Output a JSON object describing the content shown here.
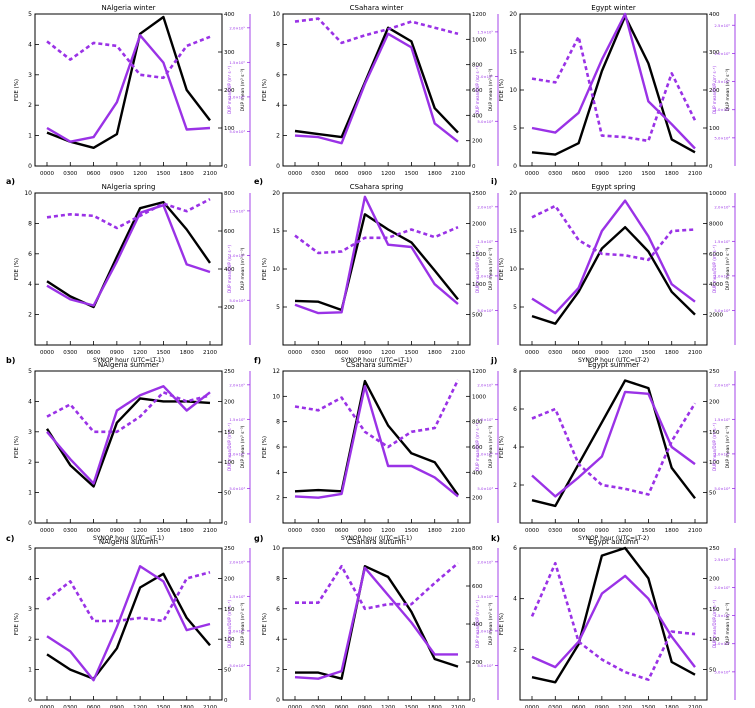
{
  "figure": {
    "x_ticks": [
      "0000",
      "0300",
      "0600",
      "0900",
      "1200",
      "1500",
      "1800",
      "2100"
    ],
    "colors": {
      "fde": "#000000",
      "dup": "#9a32e6"
    }
  },
  "chart_data": [
    {
      "type": "line",
      "title": "NAlgeria winter",
      "letter": "a)",
      "xlabel": "",
      "ylabel": "FDE (%)",
      "y2label": "DUP mean (m³ s⁻³)",
      "y3label": "DUP mean/DUP (m³ s⁻³)",
      "ylim": [
        0,
        5
      ],
      "yticks": [
        0,
        1,
        2,
        3,
        4,
        5
      ],
      "y2lim": [
        0,
        400
      ],
      "y2ticks": [
        0,
        100,
        200,
        300,
        400
      ],
      "y3ticks": [
        "5.0×10⁴",
        "1.0×10⁵",
        "1.5×10⁵",
        "2.0×10⁵"
      ],
      "series": [
        {
          "values": [
            1.1,
            0.8,
            0.6,
            1.05,
            4.35,
            4.9,
            2.5,
            1.5
          ],
          "color": "#000000",
          "dash": false
        },
        {
          "values": [
            1.25,
            0.8,
            0.95,
            2.1,
            4.3,
            3.4,
            1.2,
            1.25
          ],
          "color": "#9a32e6",
          "dash": false
        },
        {
          "values": [
            4.1,
            3.5,
            4.05,
            3.95,
            3.0,
            2.9,
            3.95,
            4.25
          ],
          "color": "#9a32e6",
          "dash": true
        }
      ]
    },
    {
      "type": "line",
      "title": "CSahara winter",
      "letter": "e)",
      "xlabel": "",
      "ylabel": "FDE (%)",
      "y2label": "DUP mean (m³ s⁻³)",
      "y3label": "DUP mean/DUP (m³ s⁻³)",
      "ylim": [
        0,
        10
      ],
      "yticks": [
        0,
        2,
        4,
        6,
        8,
        10
      ],
      "y2lim": [
        0,
        1200
      ],
      "y2ticks": [
        0,
        200,
        400,
        600,
        800,
        1000,
        1200
      ],
      "y3ticks": [
        "5.0×10⁴",
        "1.0×10⁵",
        "1.5×10⁵"
      ],
      "series": [
        {
          "values": [
            2.3,
            2.1,
            1.9,
            5.5,
            9.1,
            8.2,
            3.8,
            2.2
          ],
          "color": "#000000",
          "dash": false
        },
        {
          "values": [
            2.0,
            1.9,
            1.5,
            5.4,
            8.7,
            7.8,
            2.8,
            1.6
          ],
          "color": "#9a32e6",
          "dash": false
        },
        {
          "values": [
            9.5,
            9.7,
            8.1,
            8.6,
            9.0,
            9.5,
            9.1,
            8.7
          ],
          "color": "#9a32e6",
          "dash": true
        }
      ]
    },
    {
      "type": "line",
      "title": "Egypt winter",
      "letter": "i)",
      "xlabel": "",
      "ylabel": "FDE (%)",
      "y2label": "DUP mean (m³ s⁻³)",
      "y3label": "DUP mean/DUP (m³ s⁻³)",
      "ylim": [
        0,
        20
      ],
      "yticks": [
        0,
        5,
        10,
        15,
        20
      ],
      "y2lim": [
        0,
        400
      ],
      "y2ticks": [
        0,
        100,
        200,
        300,
        400
      ],
      "y3ticks": [
        "5.0×10⁴",
        "1.0×10⁵",
        "1.5×10⁵",
        "2.0×10⁵",
        "2.5×10⁵"
      ],
      "series": [
        {
          "values": [
            1.8,
            1.5,
            3.0,
            12.5,
            19.7,
            13.5,
            3.5,
            1.8
          ],
          "color": "#000000",
          "dash": false
        },
        {
          "values": [
            5.0,
            4.4,
            7.0,
            14.0,
            20.0,
            8.5,
            5.5,
            2.3
          ],
          "color": "#9a32e6",
          "dash": false
        },
        {
          "values": [
            11.5,
            11.0,
            17.0,
            4.0,
            3.8,
            3.3,
            12.2,
            6.0
          ],
          "color": "#9a32e6",
          "dash": true
        }
      ]
    },
    {
      "type": "line",
      "title": "NAlgeria spring",
      "letter": "b)",
      "xlabel": "SYNOP hour (UTC=LT-1)",
      "ylabel": "FDE (%)",
      "y2label": "DUP mean (m³ s⁻³)",
      "y3label": "DUP mean/DUP (m³ s⁻³)",
      "ylim": [
        0,
        10
      ],
      "yticks": [
        2,
        4,
        6,
        8,
        10
      ],
      "y2lim": [
        0,
        800
      ],
      "y2ticks": [
        200,
        400,
        600,
        800
      ],
      "y3ticks": [
        "5.0×10⁴",
        "1.0×10⁵",
        "1.5×10⁵"
      ],
      "series": [
        {
          "values": [
            4.2,
            3.2,
            2.5,
            5.8,
            9.0,
            9.4,
            7.6,
            5.4
          ],
          "color": "#000000",
          "dash": false
        },
        {
          "values": [
            3.9,
            3.0,
            2.6,
            5.5,
            8.7,
            9.2,
            5.3,
            4.8
          ],
          "color": "#9a32e6",
          "dash": false
        },
        {
          "values": [
            8.4,
            8.6,
            8.5,
            7.7,
            8.5,
            9.3,
            8.8,
            9.6
          ],
          "color": "#9a32e6",
          "dash": true
        }
      ]
    },
    {
      "type": "line",
      "title": "CSahara spring",
      "letter": "f)",
      "xlabel": "SYNOP hour (UTC=LT-1)",
      "ylabel": "FDE (%)",
      "y2label": "DUP mean (m³ s⁻³)",
      "y3label": "DUP mean/DUP (m³ s⁻³)",
      "ylim": [
        0,
        20
      ],
      "yticks": [
        5,
        10,
        15,
        20
      ],
      "y2lim": [
        0,
        2500
      ],
      "y2ticks": [
        500,
        1000,
        1500,
        2000,
        2500
      ],
      "y3ticks": [
        "5.0×10⁴",
        "1.0×10⁵",
        "1.5×10⁵",
        "2.0×10⁵"
      ],
      "series": [
        {
          "values": [
            5.8,
            5.7,
            4.6,
            17.2,
            15.2,
            13.5,
            9.8,
            6.0
          ],
          "color": "#000000",
          "dash": false
        },
        {
          "values": [
            5.3,
            4.2,
            4.3,
            19.5,
            13.2,
            12.9,
            8.0,
            5.4
          ],
          "color": "#9a32e6",
          "dash": false
        },
        {
          "values": [
            14.4,
            12.1,
            12.3,
            14.1,
            14.1,
            15.2,
            14.2,
            15.5
          ],
          "color": "#9a32e6",
          "dash": true
        }
      ]
    },
    {
      "type": "line",
      "title": "Egypt spring",
      "letter": "j)",
      "xlabel": "SYNOP hour (UTC=LT-2)",
      "ylabel": "FDE (%)",
      "y2label": "DUP mean (m³ s⁻³)",
      "y3label": "DUP mean/DUP (m³ s⁻³)",
      "ylim": [
        0,
        20
      ],
      "yticks": [
        5,
        10,
        15,
        20
      ],
      "y2lim": [
        0,
        10000
      ],
      "y2ticks": [
        2000,
        4000,
        6000,
        8000,
        10000
      ],
      "y3ticks": [
        "5.0×10⁴",
        "1.0×10⁵",
        "1.5×10⁵",
        "2.0×10⁵"
      ],
      "series": [
        {
          "values": [
            3.8,
            2.8,
            7.0,
            12.7,
            15.5,
            12.3,
            7.0,
            4.0
          ],
          "color": "#000000",
          "dash": false
        },
        {
          "values": [
            6.1,
            4.2,
            7.5,
            15.0,
            19.0,
            14.3,
            8.0,
            5.7
          ],
          "color": "#9a32e6",
          "dash": false
        },
        {
          "values": [
            16.8,
            18.3,
            13.8,
            12.0,
            11.8,
            11.2,
            15.0,
            15.2
          ],
          "color": "#9a32e6",
          "dash": true
        }
      ]
    },
    {
      "type": "line",
      "title": "NAlgeria summer",
      "letter": "c)",
      "xlabel": "SYNOP hour (UTC=LT-1)",
      "ylabel": "FDE (%)",
      "y2label": "DUP mean (m³ s⁻³)",
      "y3label": "DUP mean/DUP (m³ s⁻³)",
      "ylim": [
        0,
        5
      ],
      "yticks": [
        0,
        1,
        2,
        3,
        4,
        5
      ],
      "y2lim": [
        0,
        250
      ],
      "y2ticks": [
        0,
        50,
        100,
        150,
        200,
        250
      ],
      "y3ticks": [
        "5.0×10⁴",
        "1.0×10⁵",
        "1.5×10⁵",
        "2.0×10⁵"
      ],
      "series": [
        {
          "values": [
            3.1,
            1.9,
            1.2,
            3.3,
            4.1,
            4.0,
            4.0,
            3.95
          ],
          "color": "#000000",
          "dash": false
        },
        {
          "values": [
            3.0,
            2.1,
            1.3,
            3.7,
            4.2,
            4.5,
            3.7,
            4.3
          ],
          "color": "#9a32e6",
          "dash": false
        },
        {
          "values": [
            3.5,
            3.9,
            3.0,
            3.0,
            3.5,
            4.3,
            4.0,
            4.2
          ],
          "color": "#9a32e6",
          "dash": true
        }
      ]
    },
    {
      "type": "line",
      "title": "CSahara summer",
      "letter": "g)",
      "xlabel": "SYNOP hour (UTC=LT-1)",
      "ylabel": "FDE (%)",
      "y2label": "DUP mean (m³ s⁻³)",
      "y3label": "DUP mean/DUP (m³ s⁻³)",
      "ylim": [
        0,
        12
      ],
      "yticks": [
        2,
        4,
        6,
        8,
        10,
        12
      ],
      "y2lim": [
        0,
        1200
      ],
      "y2ticks": [
        200,
        400,
        600,
        800,
        1000,
        1200
      ],
      "y3ticks": [
        "5.0×10⁴",
        "1.0×10⁵",
        "1.5×10⁵",
        "2.0×10⁵"
      ],
      "series": [
        {
          "values": [
            2.5,
            2.6,
            2.5,
            11.2,
            7.7,
            5.5,
            4.8,
            2.2
          ],
          "color": "#000000",
          "dash": false
        },
        {
          "values": [
            2.1,
            2.0,
            2.3,
            10.8,
            4.5,
            4.5,
            3.6,
            2.1
          ],
          "color": "#9a32e6",
          "dash": false
        },
        {
          "values": [
            9.2,
            8.9,
            9.9,
            7.2,
            6.0,
            7.2,
            7.5,
            11.3
          ],
          "color": "#9a32e6",
          "dash": true
        }
      ]
    },
    {
      "type": "line",
      "title": "Egypt summer",
      "letter": "k)",
      "xlabel": "SYNOP hour (UTC=LT-2)",
      "ylabel": "FDE (%)",
      "y2label": "DUP mean (m³ s⁻³)",
      "y3label": "DUP mean/DUP (m³ s⁻³)",
      "ylim": [
        0,
        8
      ],
      "yticks": [
        2,
        4,
        6,
        8
      ],
      "y2lim": [
        0,
        250
      ],
      "y2ticks": [
        50,
        100,
        150,
        200,
        250
      ],
      "y3ticks": [
        "5.0×10⁴",
        "1.0×10⁵",
        "1.5×10⁵",
        "2.0×10⁵"
      ],
      "series": [
        {
          "values": [
            1.2,
            0.9,
            3.1,
            5.3,
            7.5,
            7.1,
            2.9,
            1.3
          ],
          "color": "#000000",
          "dash": false
        },
        {
          "values": [
            2.5,
            1.4,
            2.4,
            3.5,
            6.9,
            6.8,
            4.0,
            3.1
          ],
          "color": "#9a32e6",
          "dash": false
        },
        {
          "values": [
            5.5,
            6.0,
            3.1,
            2.0,
            1.8,
            1.5,
            4.3,
            6.3
          ],
          "color": "#9a32e6",
          "dash": true
        }
      ]
    },
    {
      "type": "line",
      "title": "NAlgeria autumn",
      "letter": "d)",
      "xlabel": "SYNOP hour (UTC=LT-1)",
      "ylabel": "FDE (%)",
      "y2label": "DUP mean (m³ s⁻³)",
      "y3label": "DUP mean/DUP (m³ s⁻³)",
      "ylim": [
        0,
        5
      ],
      "yticks": [
        0,
        1,
        2,
        3,
        4,
        5
      ],
      "y2lim": [
        0,
        250
      ],
      "y2ticks": [
        0,
        50,
        100,
        150,
        200,
        250
      ],
      "y3ticks": [
        "5.0×10⁴",
        "1.0×10⁵",
        "1.5×10⁵",
        "2.0×10⁵"
      ],
      "series": [
        {
          "values": [
            1.5,
            1.0,
            0.7,
            1.7,
            3.7,
            4.15,
            2.7,
            1.8
          ],
          "color": "#000000",
          "dash": false
        },
        {
          "values": [
            2.1,
            1.6,
            0.65,
            2.4,
            4.4,
            3.9,
            2.3,
            2.5
          ],
          "color": "#9a32e6",
          "dash": false
        },
        {
          "values": [
            3.3,
            3.9,
            2.6,
            2.6,
            2.7,
            2.6,
            4.0,
            4.2
          ],
          "color": "#9a32e6",
          "dash": true
        }
      ]
    },
    {
      "type": "line",
      "title": "CSahara autumn",
      "letter": "h)",
      "xlabel": "SYNOP hour (UTC=LT-1)",
      "ylabel": "FDE (%)",
      "y2label": "DUP mean (m³ s⁻³)",
      "y3label": "DUP mean/DUP (m³ s⁻³)",
      "ylim": [
        0,
        10
      ],
      "yticks": [
        0,
        2,
        4,
        6,
        8,
        10
      ],
      "y2lim": [
        0,
        800
      ],
      "y2ticks": [
        0,
        200,
        400,
        600,
        800
      ],
      "y3ticks": [
        "5.0×10⁴",
        "1.0×10⁵",
        "1.5×10⁵",
        "2.0×10⁵"
      ],
      "series": [
        {
          "values": [
            1.8,
            1.8,
            1.4,
            8.8,
            8.1,
            5.8,
            2.7,
            2.2
          ],
          "color": "#000000",
          "dash": false
        },
        {
          "values": [
            1.5,
            1.4,
            1.9,
            8.7,
            6.9,
            5.1,
            3.0,
            3.0
          ],
          "color": "#9a32e6",
          "dash": false
        },
        {
          "values": [
            6.4,
            6.4,
            8.8,
            6.0,
            6.3,
            6.3,
            7.7,
            9.0
          ],
          "color": "#9a32e6",
          "dash": true
        }
      ]
    },
    {
      "type": "line",
      "title": "Egypt autumn",
      "letter": "l)",
      "xlabel": "SYNOP hour (UTC=LT-2)",
      "ylabel": "FDE (%)",
      "y2label": "DUP mean (m³ s⁻³)",
      "y3label": "DUP mean/DUP (m³ s⁻³)",
      "ylim": [
        0,
        6
      ],
      "yticks": [
        2,
        4,
        6
      ],
      "y2lim": [
        0,
        250
      ],
      "y2ticks": [
        50,
        100,
        150,
        200,
        250
      ],
      "y3ticks": [
        "5.0×10⁴",
        "1.0×10⁵",
        "1.5×10⁵",
        "2.0×10⁵",
        "2.5×10⁵"
      ],
      "series": [
        {
          "values": [
            0.9,
            0.7,
            2.2,
            5.7,
            6.0,
            4.8,
            1.5,
            1.0
          ],
          "color": "#000000",
          "dash": false
        },
        {
          "values": [
            1.7,
            1.3,
            2.3,
            4.2,
            4.9,
            4.0,
            2.5,
            1.3
          ],
          "color": "#9a32e6",
          "dash": false
        },
        {
          "values": [
            3.3,
            5.4,
            2.3,
            1.6,
            1.1,
            0.8,
            2.7,
            2.6
          ],
          "color": "#9a32e6",
          "dash": true
        }
      ]
    }
  ]
}
